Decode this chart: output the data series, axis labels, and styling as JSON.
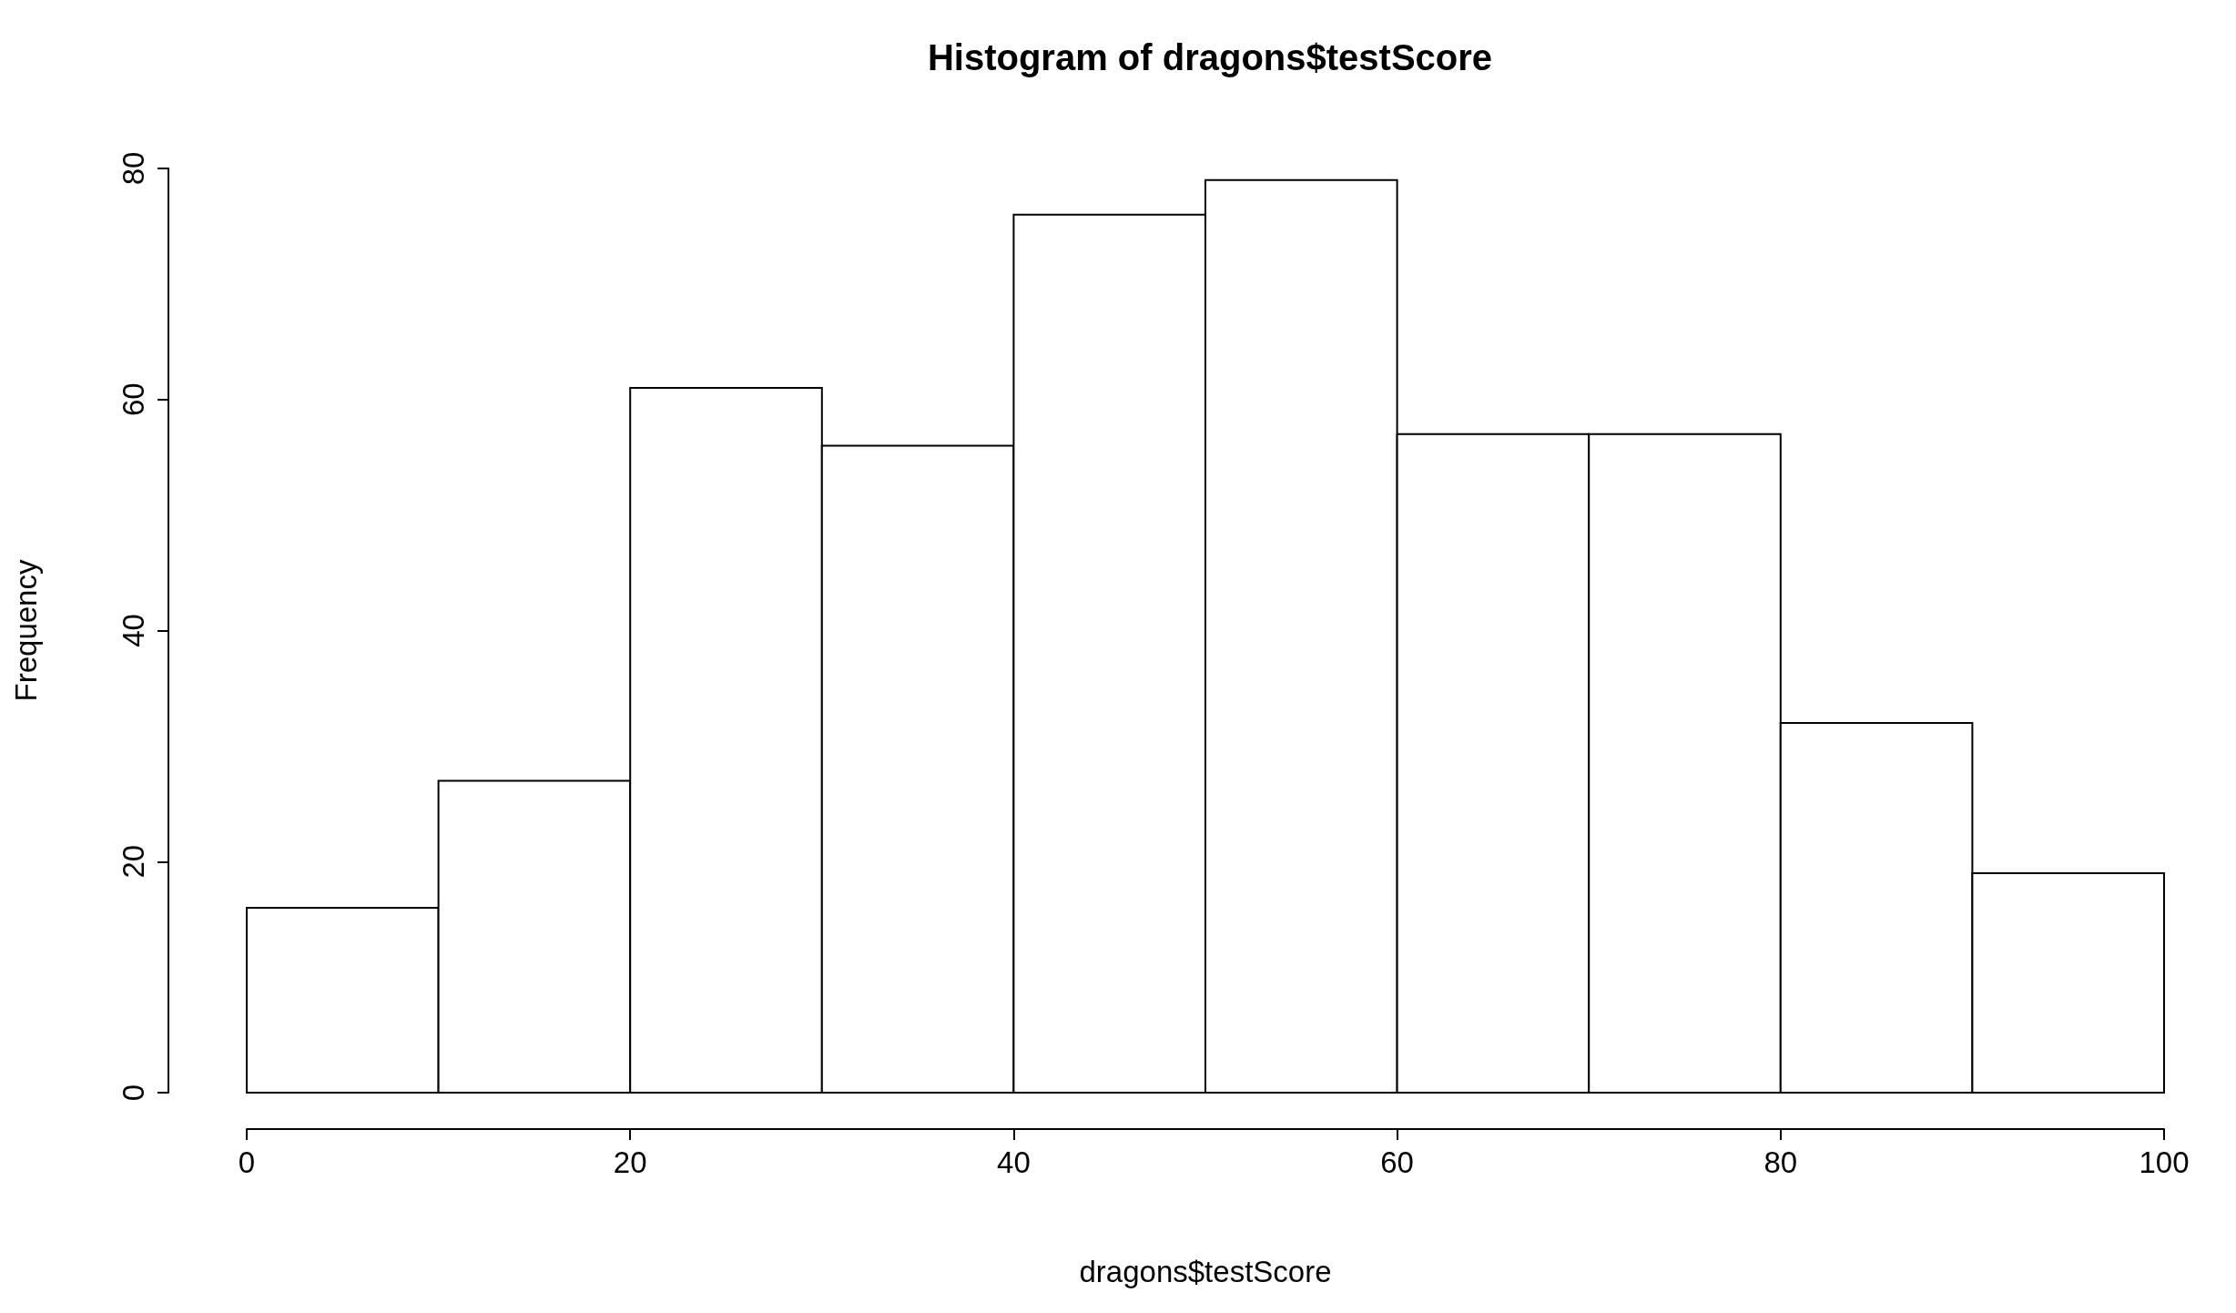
{
  "chart_data": {
    "type": "histogram",
    "title": "Histogram of dragons$testScore",
    "xlabel": "dragons$testScore",
    "ylabel": "Frequency",
    "bins": [
      0,
      10,
      20,
      30,
      40,
      50,
      60,
      70,
      80,
      90,
      100
    ],
    "values": [
      16,
      27,
      61,
      56,
      76,
      79,
      57,
      57,
      32,
      19
    ],
    "color": "#ffffff",
    "xlim": [
      0,
      100
    ],
    "xticks": [
      0,
      20,
      40,
      60,
      80,
      100
    ],
    "ylim": [
      0,
      80
    ],
    "yticks": [
      0,
      20,
      40,
      60,
      80
    ]
  }
}
